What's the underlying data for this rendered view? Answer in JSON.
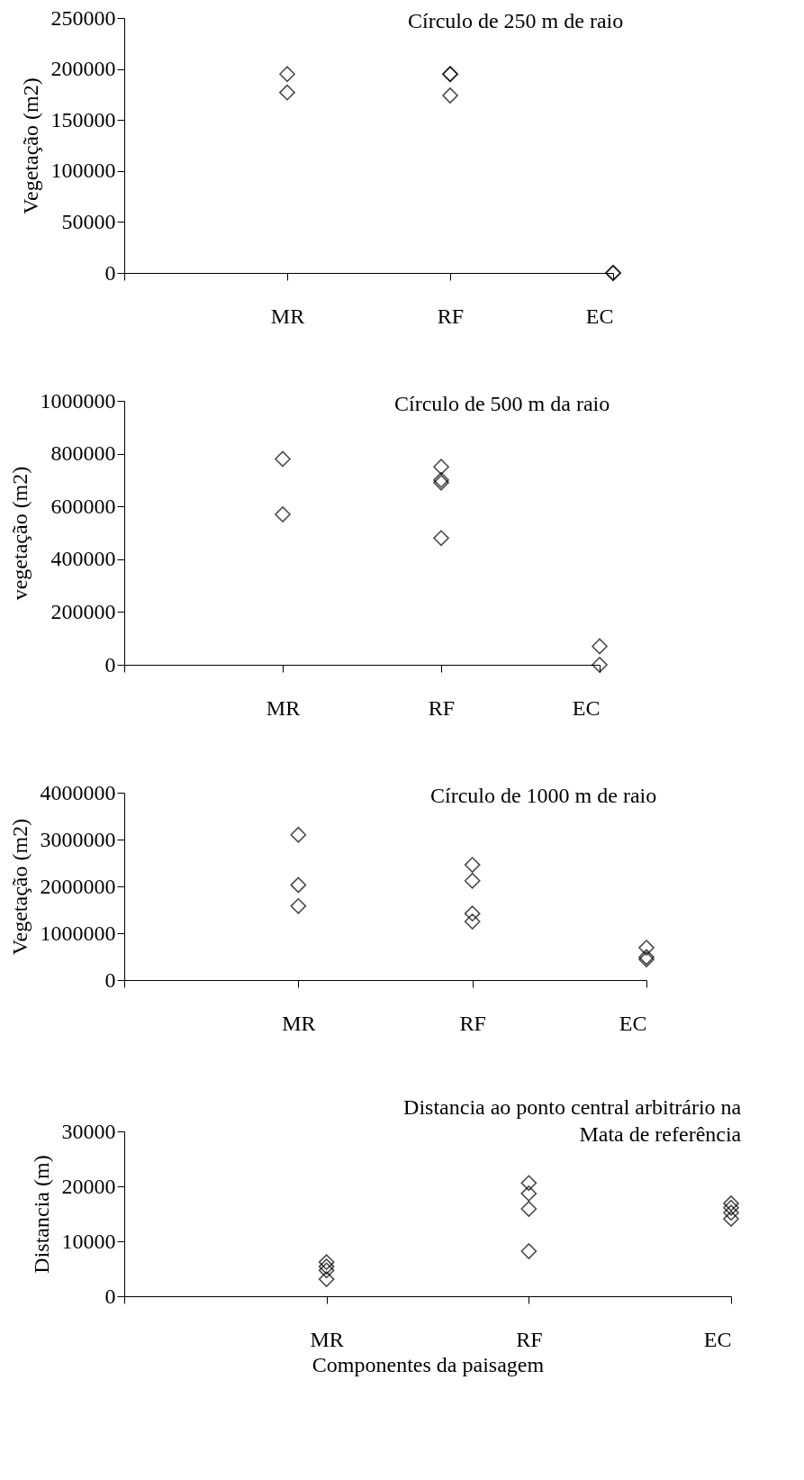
{
  "chart_data": [
    {
      "type": "scatter",
      "title": "Círculo de 250 m de raio",
      "ylabel": "Vegetação (m2)",
      "categories": [
        "MR",
        "RF",
        "EC"
      ],
      "ylim": [
        0,
        250000
      ],
      "yticks": [
        0,
        50000,
        100000,
        150000,
        200000,
        250000
      ],
      "marker": "diamond",
      "series": [
        {
          "color": "#000000",
          "x": [
            "MR",
            "MR",
            "RF",
            "RF",
            "RF",
            "EC",
            "EC"
          ],
          "values": [
            195000,
            177000,
            195000,
            195000,
            174000,
            0,
            0
          ]
        }
      ]
    },
    {
      "type": "scatter",
      "title": "Círculo de 500 m da raio",
      "ylabel": "vegetação (m2)",
      "categories": [
        "MR",
        "RF",
        "EC"
      ],
      "ylim": [
        0,
        1000000
      ],
      "yticks": [
        0,
        200000,
        400000,
        600000,
        800000,
        1000000
      ],
      "marker": "diamond",
      "series": [
        {
          "color": "#000000",
          "x": [
            "MR",
            "MR",
            "RF",
            "RF",
            "RF",
            "RF",
            "EC",
            "EC"
          ],
          "values": [
            780000,
            570000,
            750000,
            700000,
            690000,
            480000,
            70000,
            0
          ]
        }
      ]
    },
    {
      "type": "scatter",
      "title": "Círculo de 1000 m de raio",
      "ylabel": "Vegetação (m2)",
      "categories": [
        "MR",
        "RF",
        "EC"
      ],
      "ylim": [
        0,
        4000000
      ],
      "yticks": [
        0,
        1000000,
        2000000,
        3000000,
        4000000
      ],
      "marker": "diamond",
      "series": [
        {
          "color": "#000000",
          "x": [
            "MR",
            "MR",
            "MR",
            "RF",
            "RF",
            "RF",
            "RF",
            "EC",
            "EC",
            "EC"
          ],
          "values": [
            3100000,
            2030000,
            1580000,
            2460000,
            2120000,
            1420000,
            1250000,
            690000,
            490000,
            440000
          ]
        }
      ]
    },
    {
      "type": "scatter",
      "title": "Distancia ao ponto central arbitrário na Mata de referência",
      "ylabel": "Distancia (m)",
      "xlabel": "Componentes da paisagem",
      "categories": [
        "MR",
        "RF",
        "EC"
      ],
      "ylim": [
        0,
        30000
      ],
      "yticks": [
        0,
        10000,
        20000,
        30000
      ],
      "marker": "diamond",
      "series": [
        {
          "color": "#000000",
          "x": [
            "MR",
            "MR",
            "MR",
            "MR",
            "RF",
            "RF",
            "RF",
            "RF",
            "EC",
            "EC",
            "EC",
            "EC"
          ],
          "values": [
            6200,
            5400,
            4700,
            3100,
            20600,
            18700,
            15900,
            8200,
            16900,
            16100,
            15200,
            14100
          ]
        }
      ]
    }
  ]
}
